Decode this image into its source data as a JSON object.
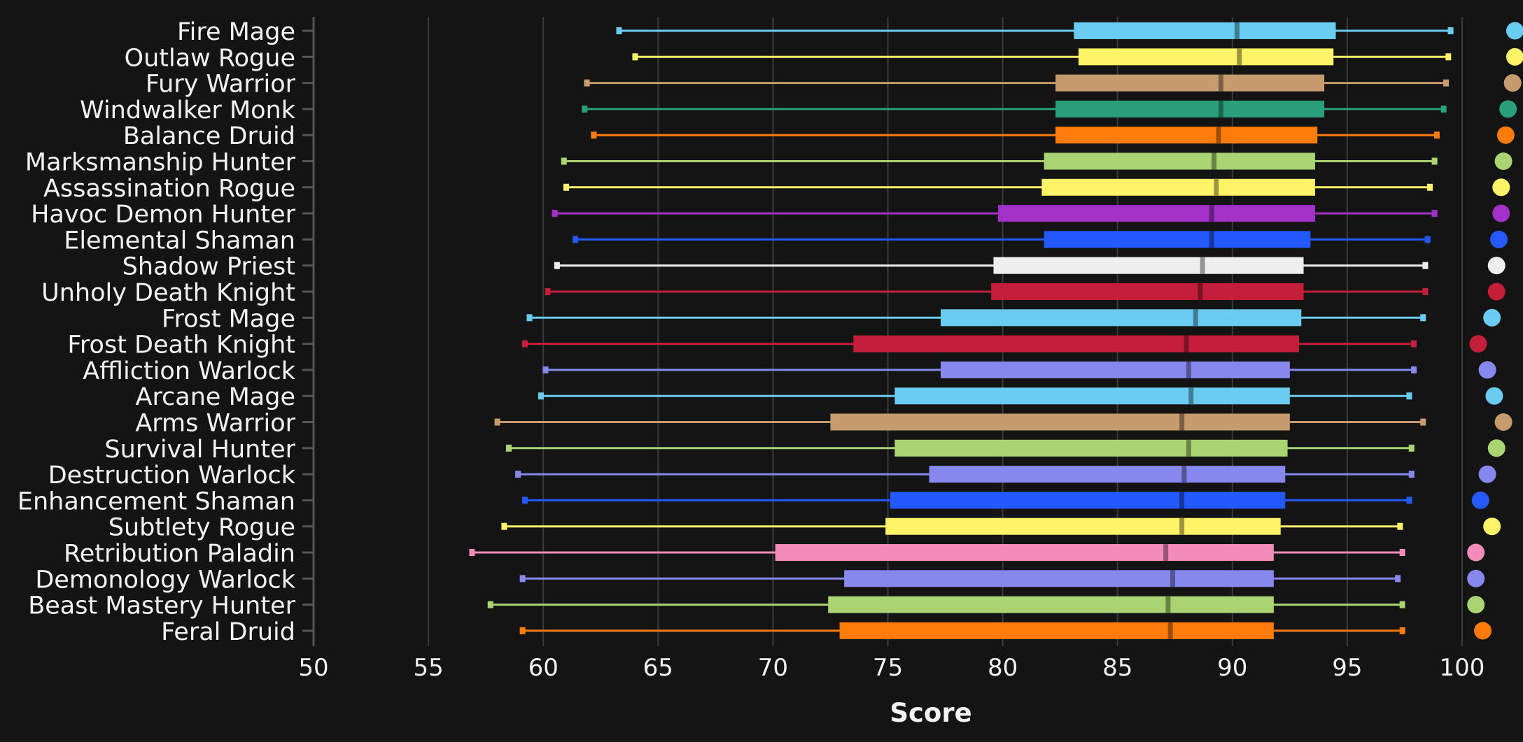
{
  "chart_data": {
    "type": "boxplot",
    "title": "",
    "xlabel": "Score",
    "ylabel": "",
    "xlim": [
      50,
      100
    ],
    "x_ticks": [
      50,
      55,
      60,
      65,
      70,
      75,
      80,
      85,
      90,
      95,
      100
    ],
    "grid": "vertical",
    "legend": "none",
    "outlier_note": "Each row's colored dot sits near the 100 mark (max value clipped)",
    "categories": [
      "Fire Mage",
      "Outlaw Rogue",
      "Fury Warrior",
      "Windwalker Monk",
      "Balance Druid",
      "Marksmanship Hunter",
      "Assassination Rogue",
      "Havoc Demon Hunter",
      "Elemental Shaman",
      "Shadow Priest",
      "Unholy Death Knight",
      "Frost Mage",
      "Frost Death Knight",
      "Affliction Warlock",
      "Arcane Mage",
      "Arms Warrior",
      "Survival Hunter",
      "Destruction Warlock",
      "Enhancement Shaman",
      "Subtlety Rogue",
      "Retribution Paladin",
      "Demonology Warlock",
      "Beast Mastery Hunter",
      "Feral Druid"
    ],
    "series": [
      {
        "min": 63.3,
        "q1": 83.1,
        "median": 90.2,
        "q3": 94.5,
        "max": 99.5,
        "top": 102.3,
        "color": "#69ccf0"
      },
      {
        "min": 64.0,
        "q1": 83.3,
        "median": 90.3,
        "q3": 94.4,
        "max": 99.4,
        "top": 102.3,
        "color": "#fff468"
      },
      {
        "min": 61.9,
        "q1": 82.3,
        "median": 89.5,
        "q3": 94.0,
        "max": 99.3,
        "top": 102.2,
        "color": "#c69b6d"
      },
      {
        "min": 61.8,
        "q1": 82.3,
        "median": 89.5,
        "q3": 94.0,
        "max": 99.2,
        "top": 102.0,
        "color": "#2aa07a"
      },
      {
        "min": 62.2,
        "q1": 82.3,
        "median": 89.4,
        "q3": 93.7,
        "max": 98.9,
        "top": 101.9,
        "color": "#ff7c0a"
      },
      {
        "min": 60.9,
        "q1": 81.8,
        "median": 89.2,
        "q3": 93.6,
        "max": 98.8,
        "top": 101.8,
        "color": "#aad372"
      },
      {
        "min": 61.0,
        "q1": 81.7,
        "median": 89.3,
        "q3": 93.6,
        "max": 98.6,
        "top": 101.7,
        "color": "#fff468"
      },
      {
        "min": 60.5,
        "q1": 79.8,
        "median": 89.1,
        "q3": 93.6,
        "max": 98.8,
        "top": 101.7,
        "color": "#a330c9"
      },
      {
        "min": 61.4,
        "q1": 81.8,
        "median": 89.1,
        "q3": 93.4,
        "max": 98.5,
        "top": 101.6,
        "color": "#2459ff"
      },
      {
        "min": 60.6,
        "q1": 79.6,
        "median": 88.7,
        "q3": 93.1,
        "max": 98.4,
        "top": 101.5,
        "color": "#eeeeee"
      },
      {
        "min": 60.2,
        "q1": 79.5,
        "median": 88.6,
        "q3": 93.1,
        "max": 98.4,
        "top": 101.5,
        "color": "#c41e3a"
      },
      {
        "min": 59.4,
        "q1": 77.3,
        "median": 88.4,
        "q3": 93.0,
        "max": 98.3,
        "top": 101.3,
        "color": "#69ccf0"
      },
      {
        "min": 59.2,
        "q1": 73.5,
        "median": 88.0,
        "q3": 92.9,
        "max": 97.9,
        "top": 100.7,
        "color": "#c41e3a"
      },
      {
        "min": 60.1,
        "q1": 77.3,
        "median": 88.1,
        "q3": 92.5,
        "max": 97.9,
        "top": 101.1,
        "color": "#8788ee"
      },
      {
        "min": 59.9,
        "q1": 75.3,
        "median": 88.2,
        "q3": 92.5,
        "max": 97.7,
        "top": 101.4,
        "color": "#69ccf0"
      },
      {
        "min": 58.0,
        "q1": 72.5,
        "median": 87.8,
        "q3": 92.5,
        "max": 98.3,
        "top": 101.8,
        "color": "#c69b6d"
      },
      {
        "min": 58.5,
        "q1": 75.3,
        "median": 88.1,
        "q3": 92.4,
        "max": 97.8,
        "top": 101.5,
        "color": "#aad372"
      },
      {
        "min": 58.9,
        "q1": 76.8,
        "median": 87.9,
        "q3": 92.3,
        "max": 97.8,
        "top": 101.1,
        "color": "#8788ee"
      },
      {
        "min": 59.2,
        "q1": 75.1,
        "median": 87.8,
        "q3": 92.3,
        "max": 97.7,
        "top": 100.8,
        "color": "#2459ff"
      },
      {
        "min": 58.3,
        "q1": 74.9,
        "median": 87.8,
        "q3": 92.1,
        "max": 97.3,
        "top": 101.3,
        "color": "#fff468"
      },
      {
        "min": 56.9,
        "q1": 70.1,
        "median": 87.1,
        "q3": 91.8,
        "max": 97.4,
        "top": 100.6,
        "color": "#f48cba"
      },
      {
        "min": 59.1,
        "q1": 73.1,
        "median": 87.4,
        "q3": 91.8,
        "max": 97.2,
        "top": 100.6,
        "color": "#8788ee"
      },
      {
        "min": 57.7,
        "q1": 72.4,
        "median": 87.2,
        "q3": 91.8,
        "max": 97.4,
        "top": 100.6,
        "color": "#aad372"
      },
      {
        "min": 59.1,
        "q1": 72.9,
        "median": 87.3,
        "q3": 91.8,
        "max": 97.4,
        "top": 100.9,
        "color": "#ff7c0a"
      }
    ]
  }
}
